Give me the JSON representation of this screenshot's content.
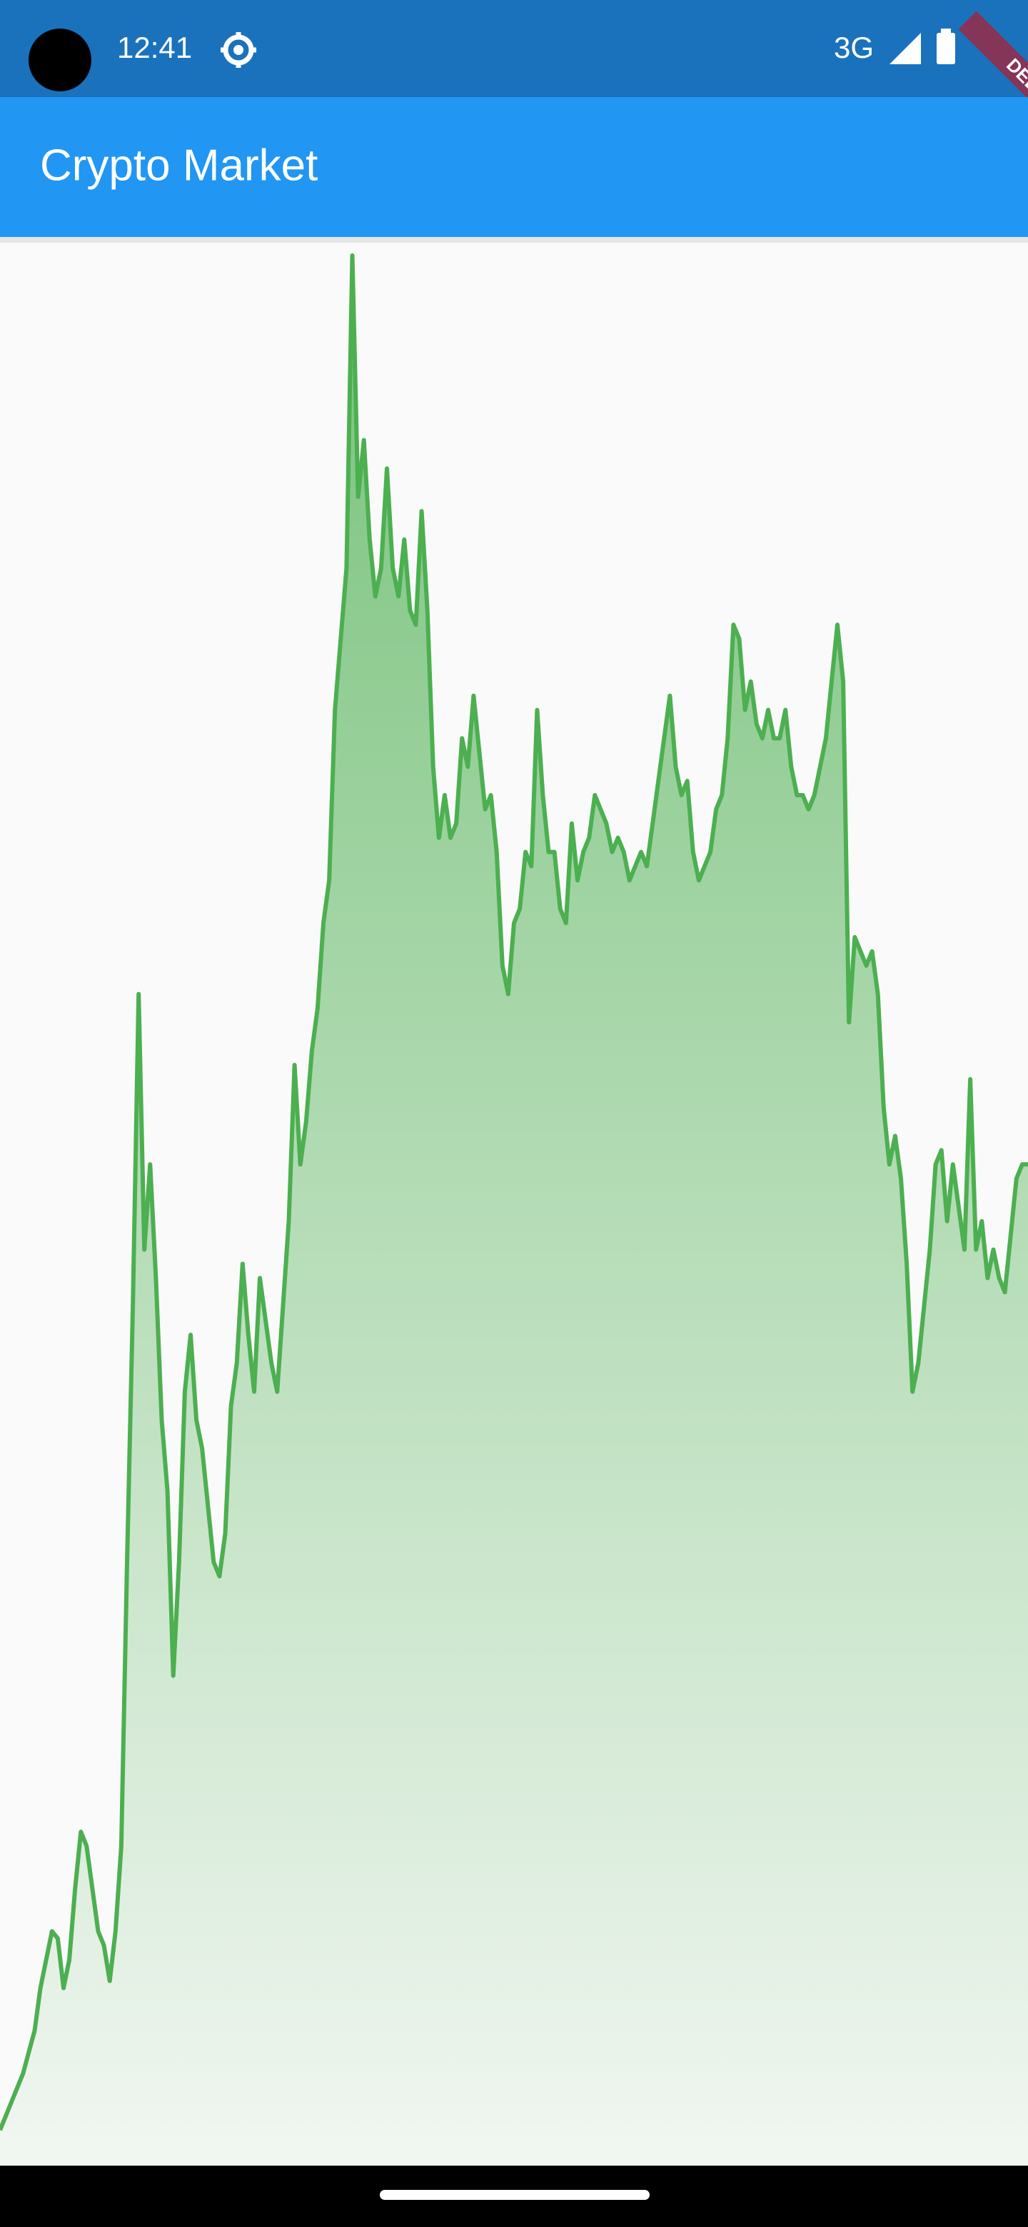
{
  "status_bar": {
    "time": "12:41",
    "network": "3G"
  },
  "debug_banner": "DEBUG",
  "app_bar": {
    "title": "Crypto Market"
  },
  "chart_data": {
    "type": "area",
    "color": "#4caf50",
    "ylim": [
      0,
      1350
    ],
    "values": [
      25,
      35,
      45,
      55,
      65,
      80,
      95,
      125,
      145,
      165,
      160,
      125,
      145,
      195,
      235,
      225,
      195,
      165,
      155,
      130,
      165,
      225,
      425,
      605,
      825,
      645,
      705,
      625,
      525,
      475,
      345,
      425,
      545,
      585,
      525,
      505,
      465,
      425,
      415,
      445,
      535,
      565,
      635,
      585,
      545,
      625,
      595,
      565,
      545,
      605,
      665,
      775,
      705,
      735,
      785,
      815,
      875,
      905,
      1025,
      1075,
      1125,
      1345,
      1175,
      1215,
      1145,
      1105,
      1125,
      1195,
      1125,
      1105,
      1145,
      1095,
      1085,
      1165,
      1095,
      985,
      935,
      965,
      935,
      945,
      1005,
      985,
      1035,
      995,
      955,
      965,
      925,
      845,
      825,
      875,
      885,
      925,
      915,
      1025,
      965,
      925,
      925,
      885,
      875,
      945,
      905,
      925,
      935,
      965,
      955,
      945,
      925,
      935,
      925,
      905,
      915,
      925,
      915,
      945,
      975,
      1005,
      1035,
      985,
      965,
      975,
      925,
      905,
      915,
      925,
      955,
      965,
      1005,
      1085,
      1075,
      1025,
      1045,
      1015,
      1005,
      1025,
      1005,
      1005,
      1025,
      985,
      965,
      965,
      955,
      965,
      985,
      1005,
      1045,
      1085,
      1045,
      805,
      865,
      855,
      845,
      855,
      825,
      745,
      705,
      725,
      695,
      635,
      545,
      565,
      605,
      645,
      705,
      715,
      665,
      705,
      675,
      645,
      765,
      645,
      665,
      625,
      645,
      625,
      615,
      655,
      695,
      705,
      705
    ]
  }
}
